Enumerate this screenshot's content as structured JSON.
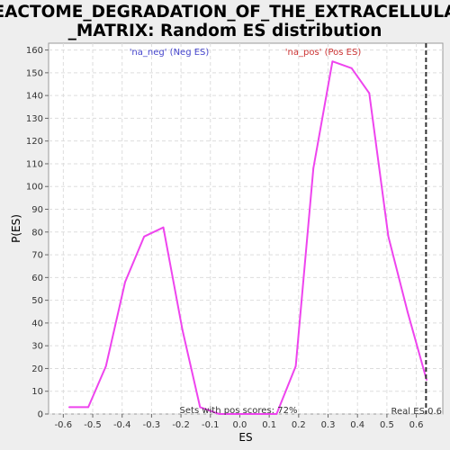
{
  "chart_data": {
    "type": "line",
    "title_line1": "REACTOME_DEGRADATION_OF_THE_EXTRACELLULAR",
    "title_line2": "_MATRIX: Random ES distribution",
    "xlabel": "ES",
    "ylabel": "P(ES)",
    "xlim": [
      -0.65,
      0.69
    ],
    "ylim": [
      0,
      163
    ],
    "x_ticks": [
      "-0.6",
      "-0.5",
      "-0.4",
      "-0.3",
      "-0.2",
      "-0.1",
      "0.0",
      "0.1",
      "0.2",
      "0.3",
      "0.4",
      "0.5",
      "0.6"
    ],
    "x_tick_values": [
      -0.6,
      -0.5,
      -0.4,
      -0.3,
      -0.2,
      -0.1,
      0.0,
      0.1,
      0.2,
      0.3,
      0.4,
      0.5,
      0.6
    ],
    "y_ticks": [
      0,
      10,
      20,
      30,
      40,
      50,
      60,
      70,
      80,
      90,
      100,
      110,
      120,
      130,
      140,
      150,
      160
    ],
    "grid": true,
    "series": [
      {
        "color": "#ee44ee",
        "x": [
          -0.58,
          -0.515,
          -0.455,
          -0.39,
          -0.325,
          -0.26,
          -0.195,
          -0.135,
          -0.07,
          0.0,
          0.065,
          0.125,
          0.19,
          0.25,
          0.315,
          0.38,
          0.44,
          0.505,
          0.57,
          0.635
        ],
        "y": [
          3,
          3,
          21,
          58,
          78,
          82,
          37,
          3,
          0,
          0,
          0,
          0,
          21,
          108,
          155,
          152,
          141,
          78,
          45,
          15
        ]
      }
    ],
    "real_es": 0.633,
    "annotations": {
      "neg": "'na_neg' (Neg ES)",
      "pos": "'na_pos' (Pos ES)",
      "sets_pos": "Sets with pos scores: 72%",
      "real_es": "Real ES 0.6"
    },
    "colors": {
      "line": "#ee44ee",
      "neg_label": "#4444cc",
      "pos_label": "#cc3333",
      "real_es_line": "#333333",
      "grid": "#dddddd"
    }
  }
}
